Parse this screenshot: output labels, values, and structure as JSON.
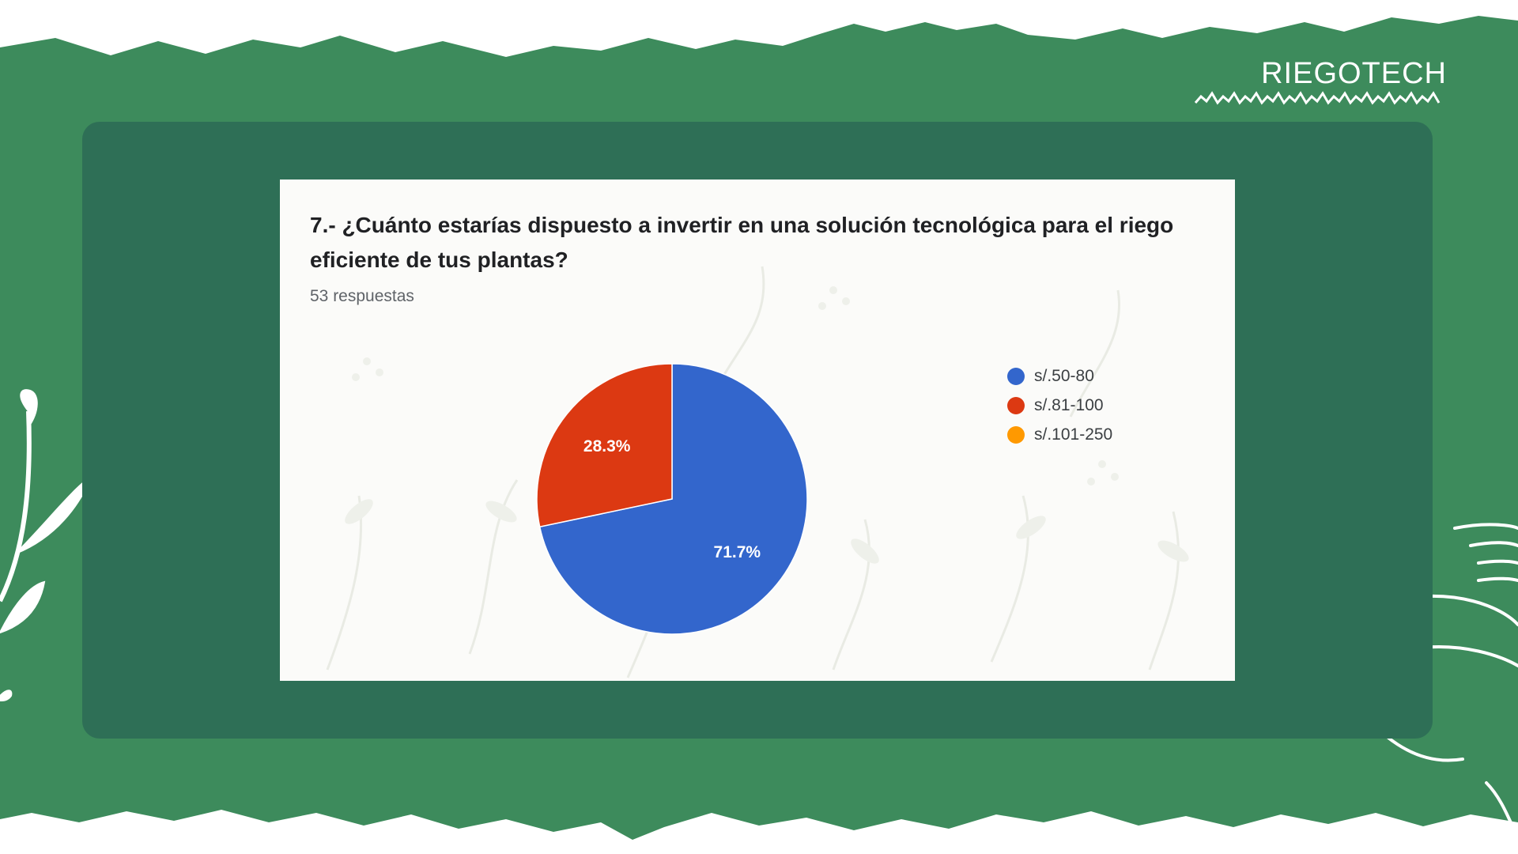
{
  "brand": {
    "name": "RIEGOTECH"
  },
  "colors": {
    "page_green": "#3d8b5c",
    "panel_green": "#2e6f56",
    "card_bg": "#fbfbf9"
  },
  "question": {
    "line1": "7.- ¿Cuánto estarías dispuesto a invertir en una solución tecnológica para el riego",
    "line2": "eficiente de tus plantas?",
    "responses": "53 respuestas"
  },
  "chart_data": {
    "type": "pie",
    "title": "7.- ¿Cuánto estarías dispuesto a invertir en una solución tecnológica para el riego eficiente de tus plantas?",
    "total_responses": 53,
    "legend_position": "right",
    "slices": [
      {
        "label": "s/.50-80",
        "percent": 71.7,
        "percent_label": "71.7%",
        "color": "#3366cc"
      },
      {
        "label": "s/.81-100",
        "percent": 28.3,
        "percent_label": "28.3%",
        "color": "#dc3912"
      },
      {
        "label": "s/.101-250",
        "percent": 0,
        "percent_label": "",
        "color": "#ff9900"
      }
    ]
  }
}
